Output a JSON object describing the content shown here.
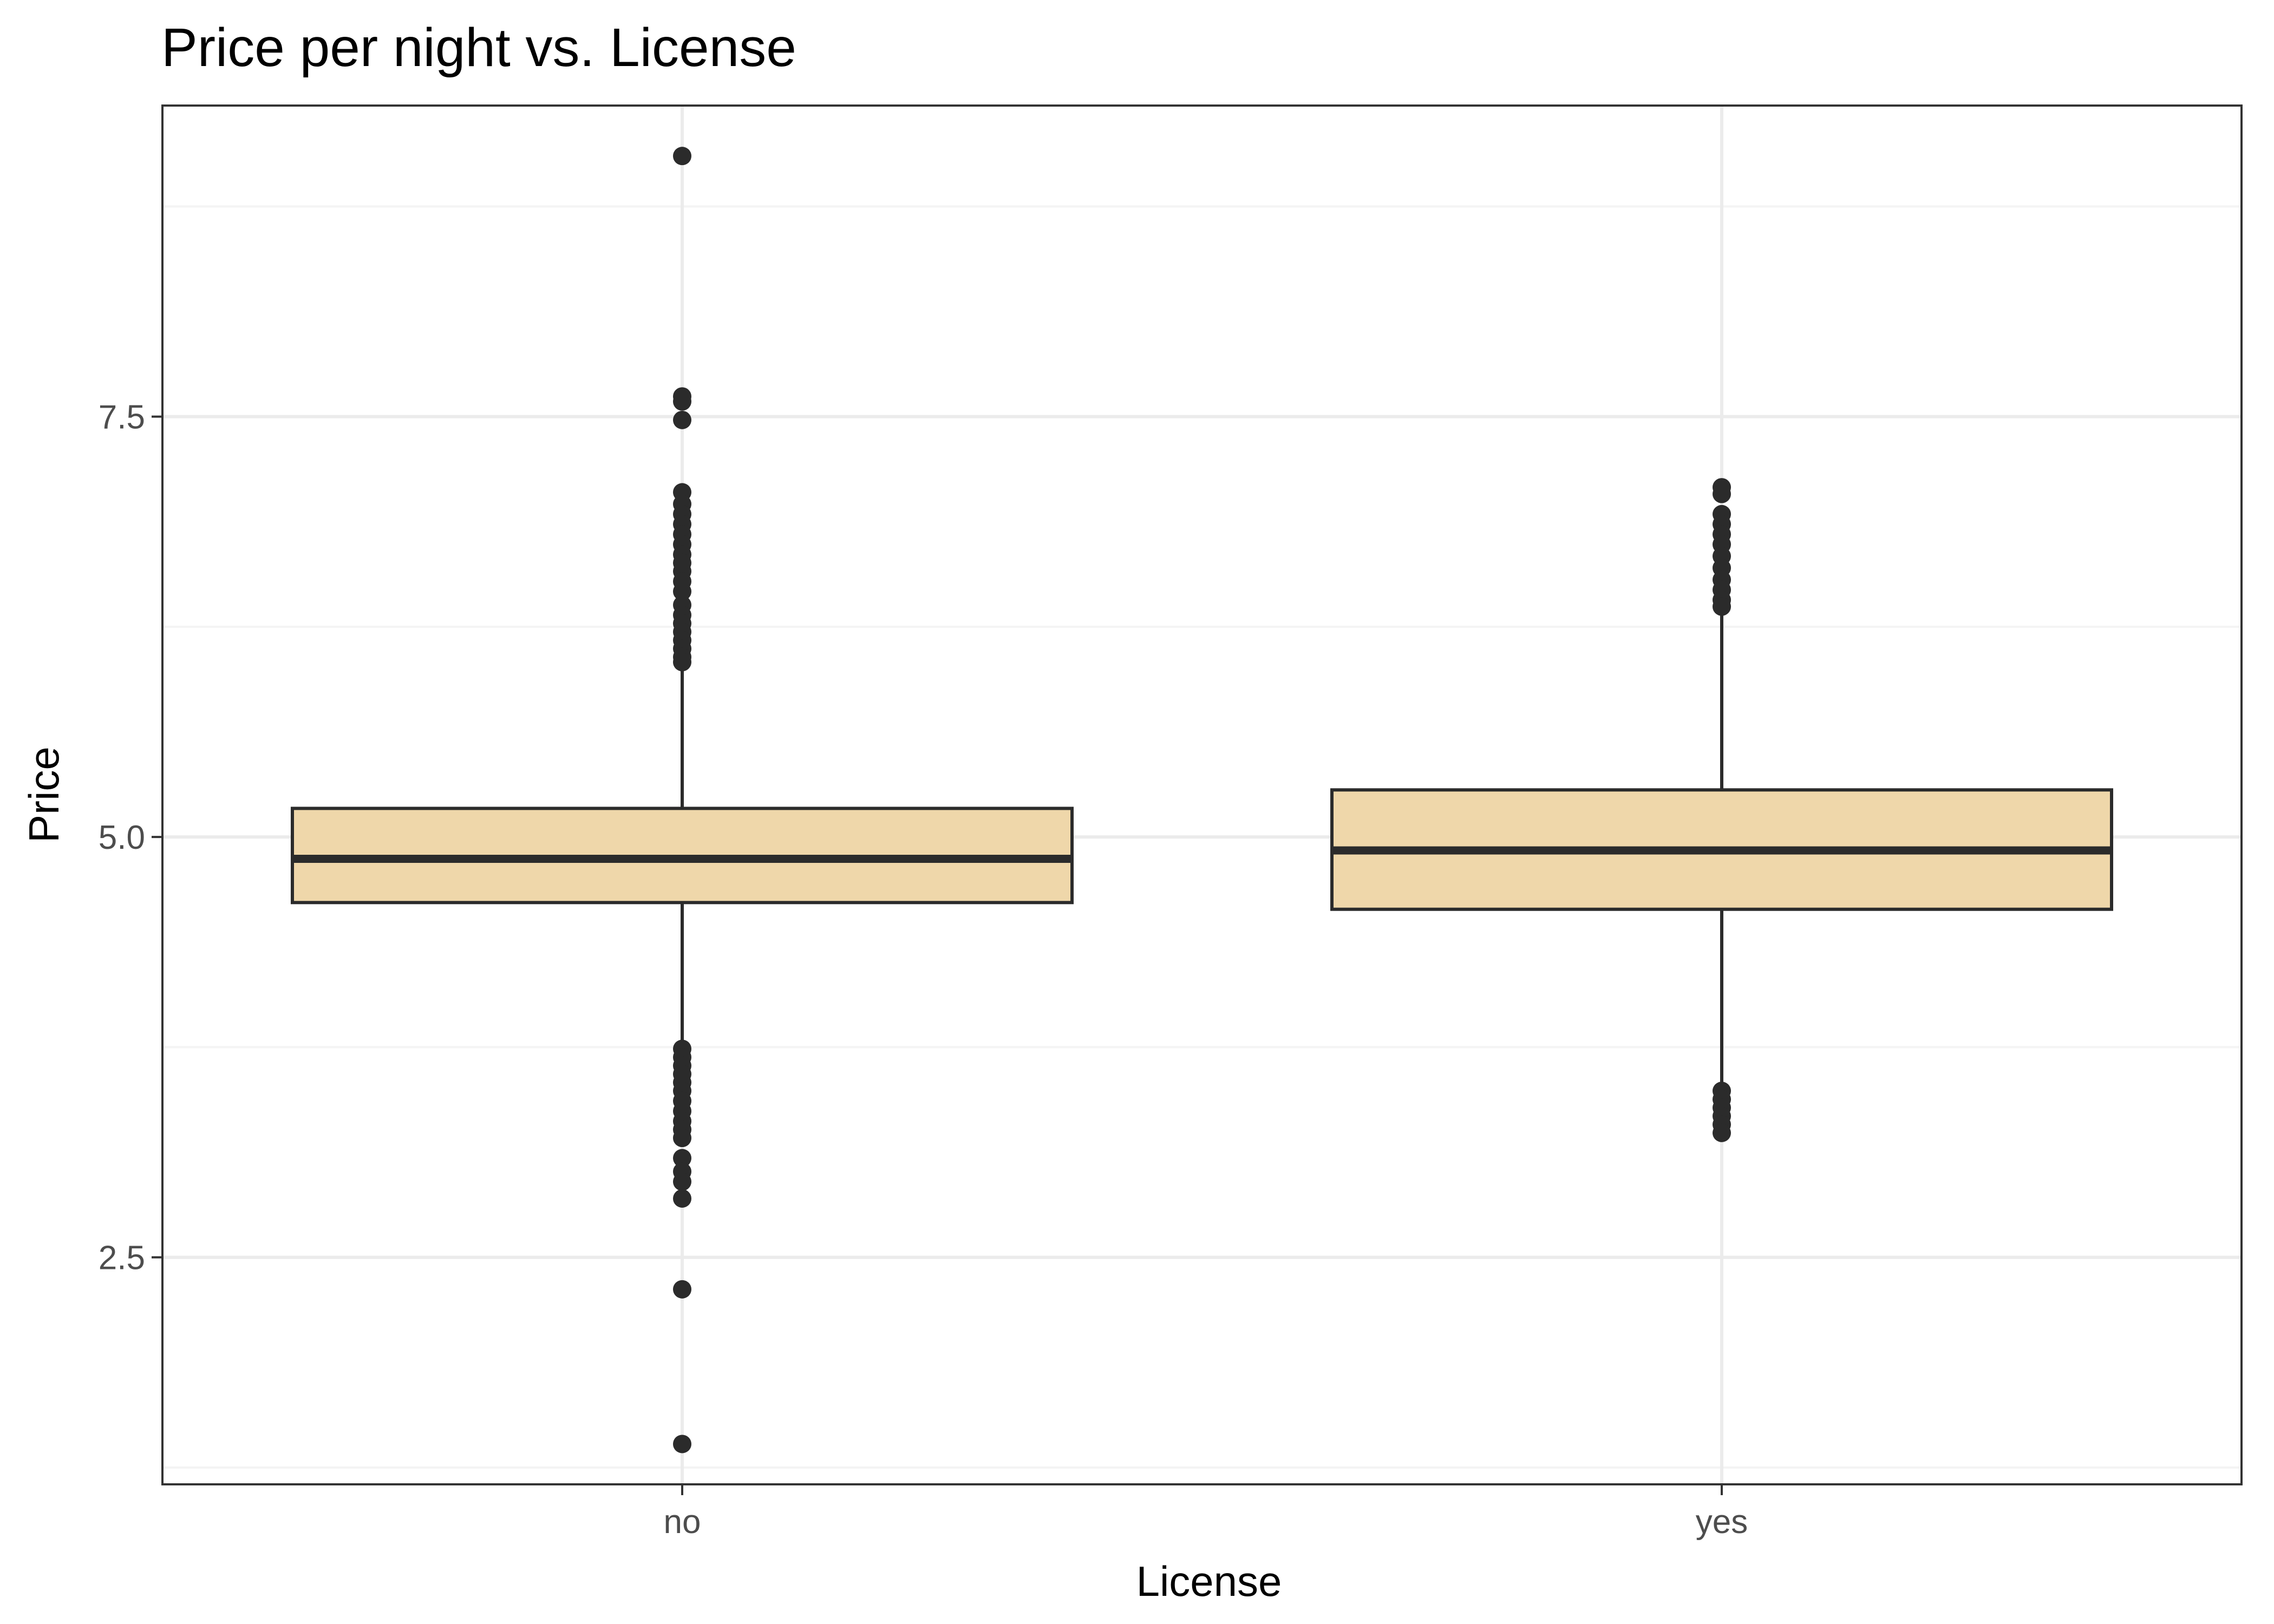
{
  "chart_data": {
    "type": "boxplot",
    "title": "Price per night vs. License",
    "xlabel": "License",
    "ylabel": "Price",
    "ylim": [
      1.15,
      9.35
    ],
    "y_ticks": [
      2.5,
      5.0,
      7.5
    ],
    "y_tick_labels": [
      "2.5",
      "5.0",
      "7.5"
    ],
    "y_minor_ticks": [
      1.25,
      3.75,
      6.25,
      8.75
    ],
    "grid": true,
    "categories": [
      "no",
      "yes"
    ],
    "boxes": [
      {
        "category": "no",
        "whisker_low": 3.77,
        "q1": 4.61,
        "median": 4.87,
        "q3": 5.17,
        "whisker_high": 6.02,
        "outliers": [
          9.05,
          7.62,
          7.59,
          7.48,
          7.05,
          6.98,
          6.92,
          6.86,
          6.8,
          6.74,
          6.68,
          6.63,
          6.58,
          6.52,
          6.46,
          6.38,
          6.32,
          6.27,
          6.22,
          6.17,
          6.12,
          6.07,
          6.04,
          3.74,
          3.69,
          3.64,
          3.59,
          3.54,
          3.49,
          3.43,
          3.37,
          3.31,
          3.26,
          3.21,
          3.09,
          3.01,
          2.95,
          2.85,
          2.31,
          1.39
        ]
      },
      {
        "category": "yes",
        "whisker_low": 3.52,
        "q1": 4.57,
        "median": 4.92,
        "q3": 5.28,
        "whisker_high": 6.34,
        "outliers": [
          7.08,
          7.04,
          6.92,
          6.86,
          6.8,
          6.74,
          6.67,
          6.6,
          6.53,
          6.47,
          6.41,
          6.37,
          3.49,
          3.44,
          3.39,
          3.34,
          3.29,
          3.24
        ]
      }
    ],
    "colors": {
      "box_fill": "#efd7aa",
      "box_stroke": "#2b2b2b",
      "point": "#2b2b2b",
      "grid_major": "#ebebeb",
      "grid_minor": "#f4f4f4",
      "panel_border": "#333333"
    }
  }
}
